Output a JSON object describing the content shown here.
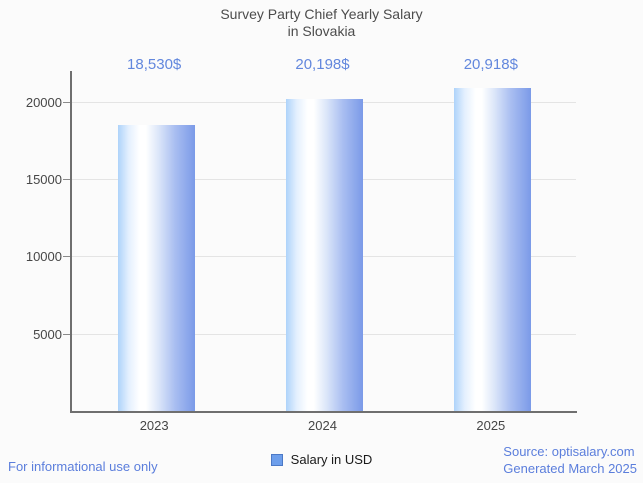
{
  "title": {
    "line1": "Survey Party Chief Yearly Salary",
    "line2": "in Slovakia"
  },
  "chart_data": {
    "type": "bar",
    "title": "Survey Party Chief Yearly Salary in Slovakia",
    "categories": [
      "2023",
      "2024",
      "2025"
    ],
    "values": [
      18530,
      20198,
      20918
    ],
    "value_labels": [
      "18,530$",
      "20,198$",
      "20,918$"
    ],
    "series_name": "Salary in USD",
    "xlabel": "",
    "ylabel": "",
    "y_ticks": [
      5000,
      10000,
      15000,
      20000
    ],
    "ylim": [
      0,
      22000
    ],
    "grid": true,
    "legend_position": "bottom",
    "bar_gradient": [
      "#aed3fa",
      "#ffffff",
      "#7b9ae8"
    ]
  },
  "legend": {
    "label": "Salary in USD",
    "swatch_color": "#6d9eeb"
  },
  "footer": {
    "left": "For informational use only",
    "source_line1": "Source: optisalary.com",
    "source_line2": "Generated March 2025"
  },
  "colors": {
    "background": "#fbfbfb",
    "title_text": "#4c4c4c",
    "axis_line": "#6f6f6f",
    "gridline": "#e4e4e4",
    "axis_text": "#474747",
    "value_label_blue": "#6287dd",
    "footer_blue": "#5b7edc"
  }
}
